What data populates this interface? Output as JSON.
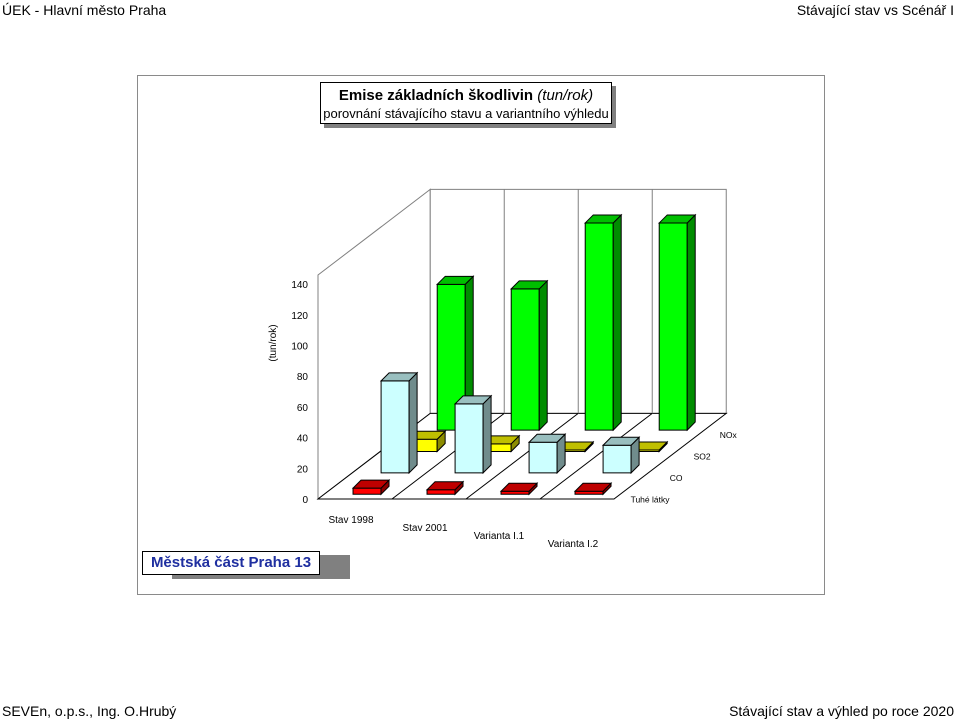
{
  "header": {
    "left": "ÚEK - Hlavní město Praha",
    "right": "Stávající stav vs Scénář I"
  },
  "footer": {
    "left": "SEVEn, o.p.s., Ing. O.Hrubý",
    "right": "Stávající stav a výhled po roce 2020"
  },
  "district_label": "Městská část Praha 13",
  "chart_data": {
    "type": "bar",
    "subtype": "3d-column",
    "title": "Emise základních škodlivin",
    "title_unit": "(tun/rok)",
    "subtitle": "porovnání stávajícího stavu a variantního výhledu",
    "ylabel": "(tun/rok)",
    "ylim": [
      0,
      140
    ],
    "yticks": [
      0,
      20,
      40,
      60,
      80,
      100,
      120,
      140
    ],
    "categories": [
      "Stav 1998",
      "Stav 2001",
      "Varianta I.1",
      "Varianta I.2"
    ],
    "series": [
      {
        "name": "Tuhé látky",
        "color": "#ff0000",
        "values": [
          4,
          3,
          2,
          2
        ]
      },
      {
        "name": "CO",
        "color": "#ccffff",
        "values": [
          60,
          45,
          20,
          18
        ]
      },
      {
        "name": "SO2",
        "color": "#ffff00",
        "values": [
          8,
          5,
          1,
          1
        ]
      },
      {
        "name": "NOx",
        "color": "#00ff00",
        "values": [
          95,
          92,
          135,
          135
        ]
      }
    ],
    "grid": true
  }
}
